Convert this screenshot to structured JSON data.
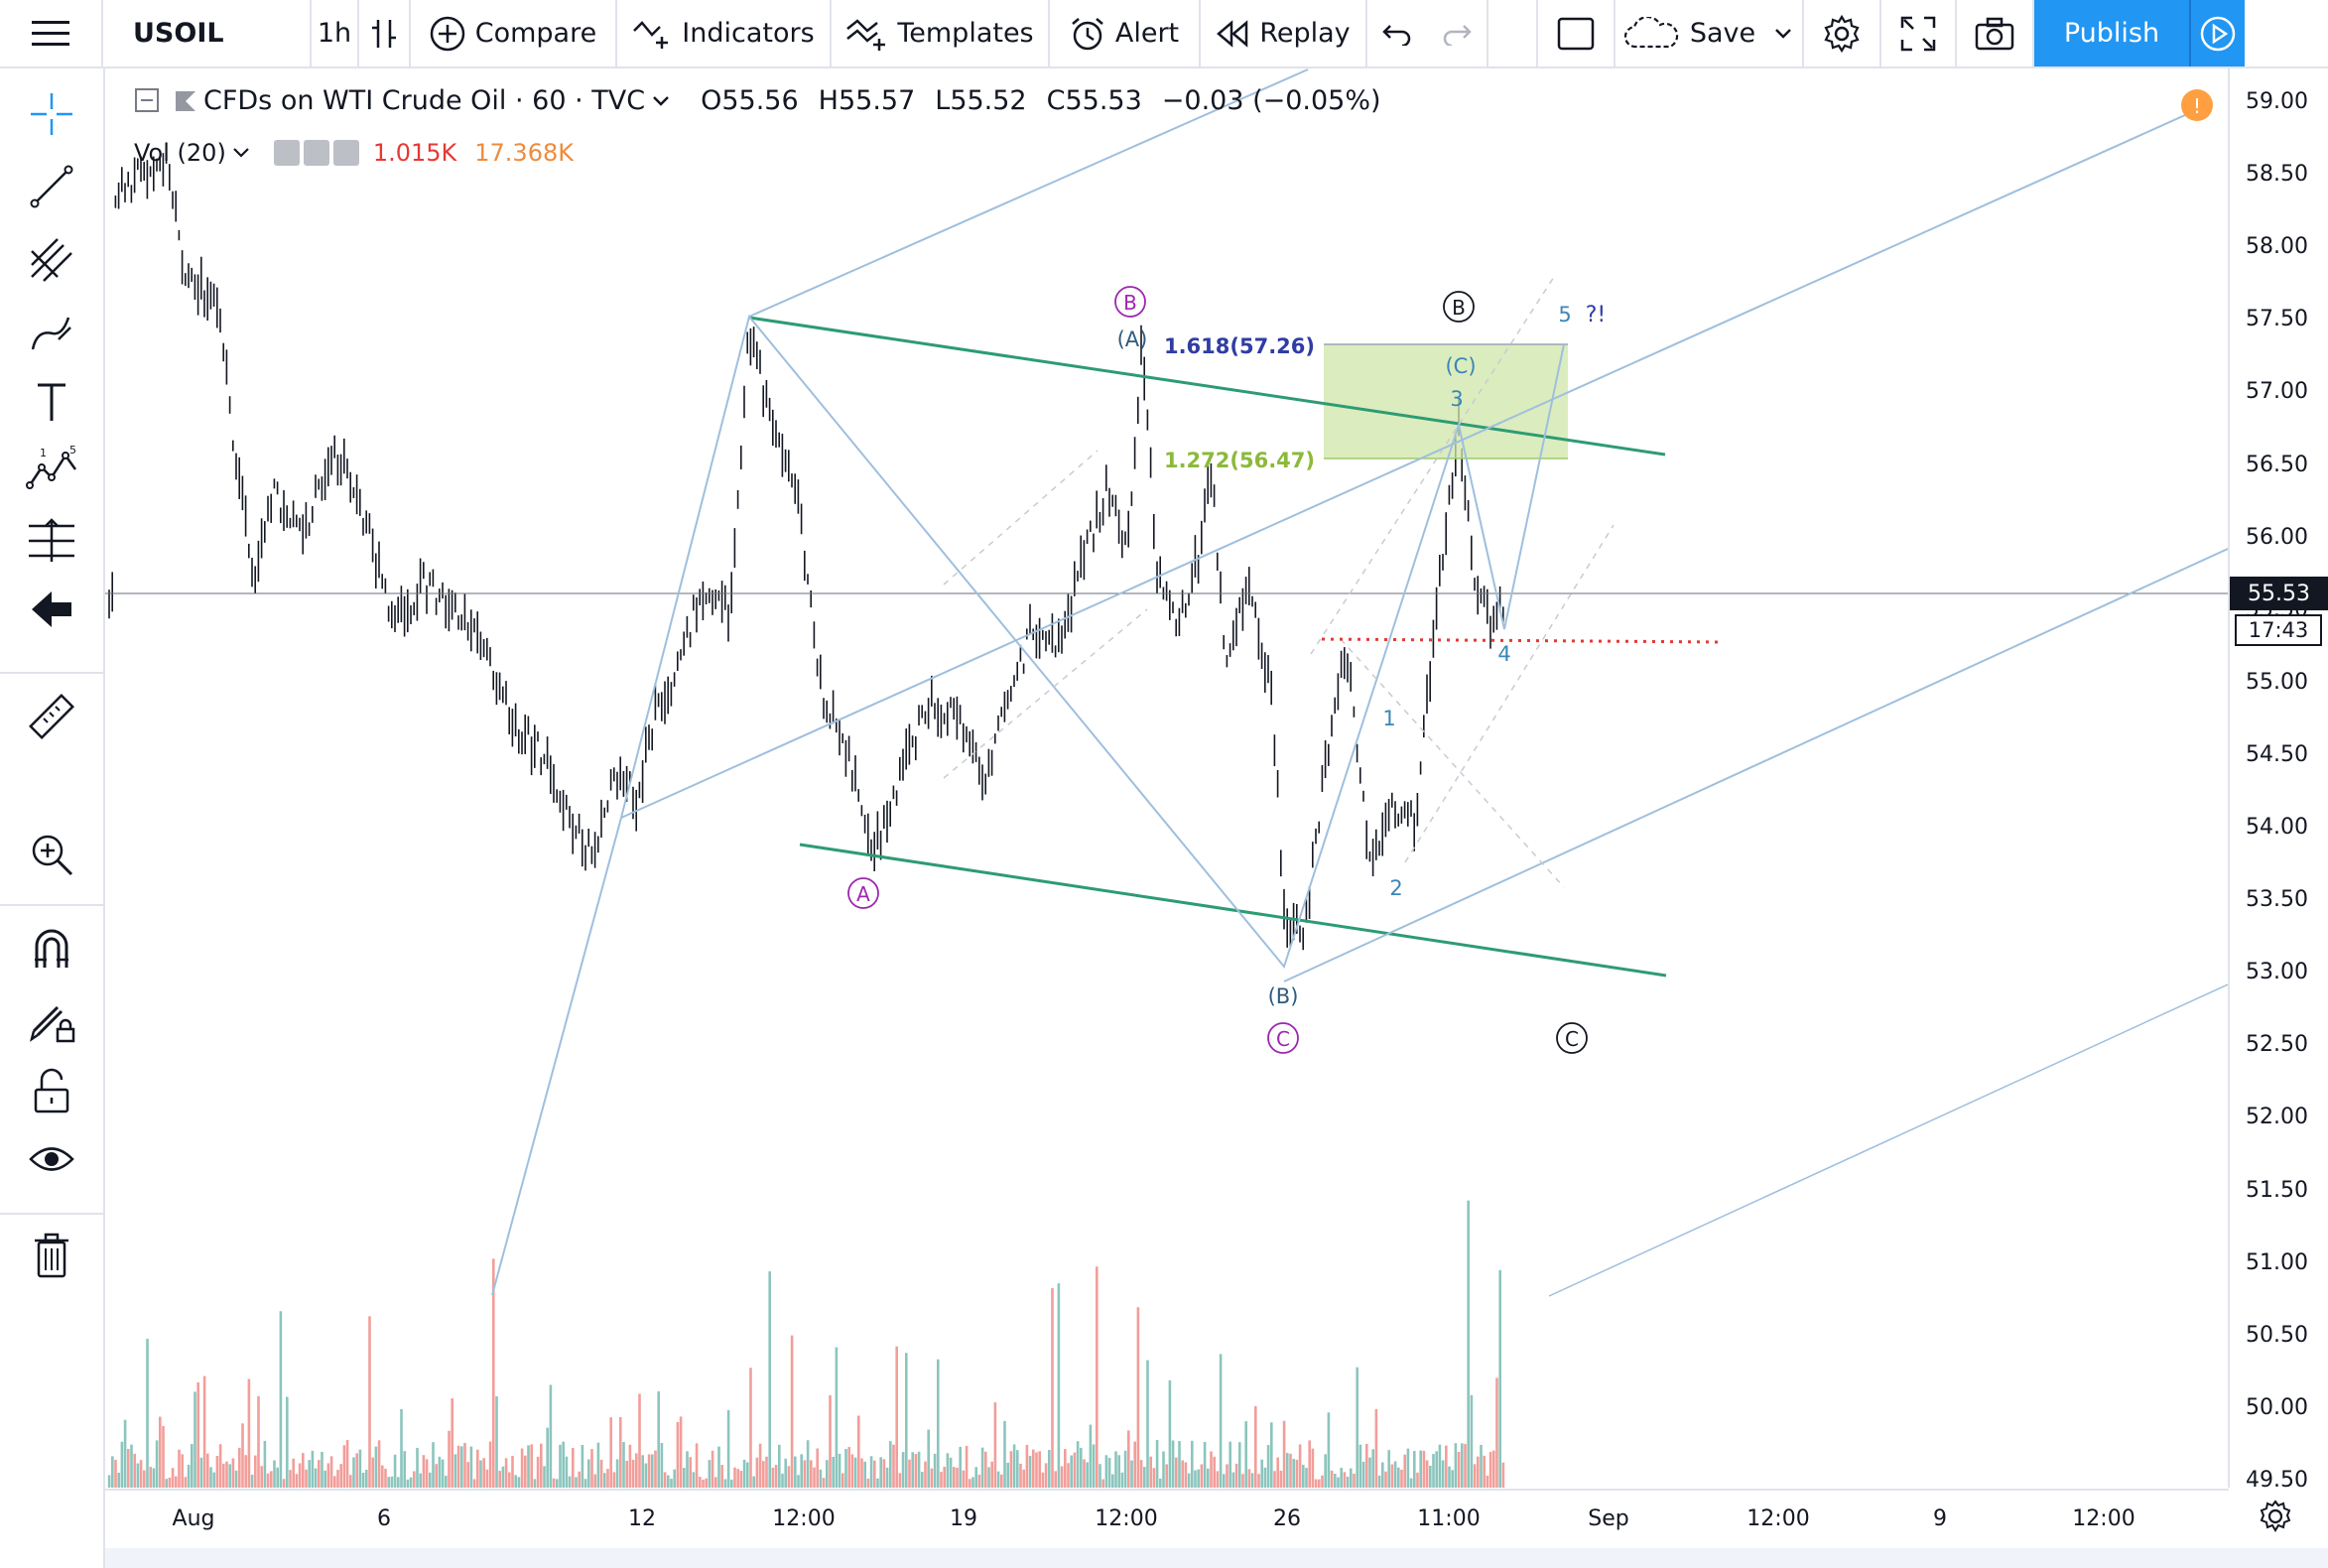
{
  "toolbar": {
    "symbol": "USOIL",
    "interval": "1h",
    "compare": "Compare",
    "indicators": "Indicators",
    "templates": "Templates",
    "alert": "Alert",
    "replay": "Replay",
    "save": "Save",
    "publish": "Publish"
  },
  "legend": {
    "title": "CFDs on WTI Crude Oil · 60 · TVC",
    "open_label": "O",
    "open": "55.56",
    "high_label": "H",
    "high": "55.57",
    "low_label": "L",
    "low": "55.52",
    "close_label": "C",
    "close": "55.53",
    "change": "−0.03 (−0.05%)"
  },
  "volume_legend": {
    "name": "Vol (20)",
    "value1": "1.015K",
    "value2": "17.368K"
  },
  "price_axis": {
    "ticks": [
      "59.00",
      "58.50",
      "58.00",
      "57.50",
      "57.00",
      "56.50",
      "56.00",
      "55.50",
      "55.00",
      "54.50",
      "54.00",
      "53.50",
      "53.00",
      "52.50",
      "52.00",
      "51.50",
      "51.00",
      "50.50",
      "50.00",
      "49.50"
    ],
    "last_price": "55.53",
    "countdown": "17:43"
  },
  "time_axis": {
    "ticks": [
      "Aug",
      "6",
      "12",
      "12:00",
      "19",
      "12:00",
      "26",
      "11:00",
      "Sep",
      "12:00",
      "9",
      "12:00"
    ]
  },
  "annotations": {
    "fib_1618": "1.618(57.26)",
    "fib_1272": "1.272(56.47)",
    "circle_A_purple": "A",
    "circle_B_purple": "B",
    "circle_C_purple": "C",
    "circle_B_black": "B",
    "circle_C_black": "C",
    "paren_A": "(A)",
    "paren_B": "(B)",
    "paren_C": "(C)",
    "w1": "1",
    "w2": "2",
    "w3": "3",
    "w4": "4",
    "w5": "5",
    "question": "?!",
    "alert_badge": "!"
  },
  "colors": {
    "accent": "#2196f3",
    "up_volume": "#8cc5bd",
    "down_volume": "#f29e9a",
    "channel_green": "#2d9b74",
    "trend_blue": "#9fbfde",
    "fib_zone": "#cfe6a8",
    "fib_1618_text": "#2f3da3",
    "fib_1272_text": "#8cb93a",
    "purple_label": "#9c27b0",
    "wave_label": "#3a86b7",
    "red_level": "#e53935"
  }
}
